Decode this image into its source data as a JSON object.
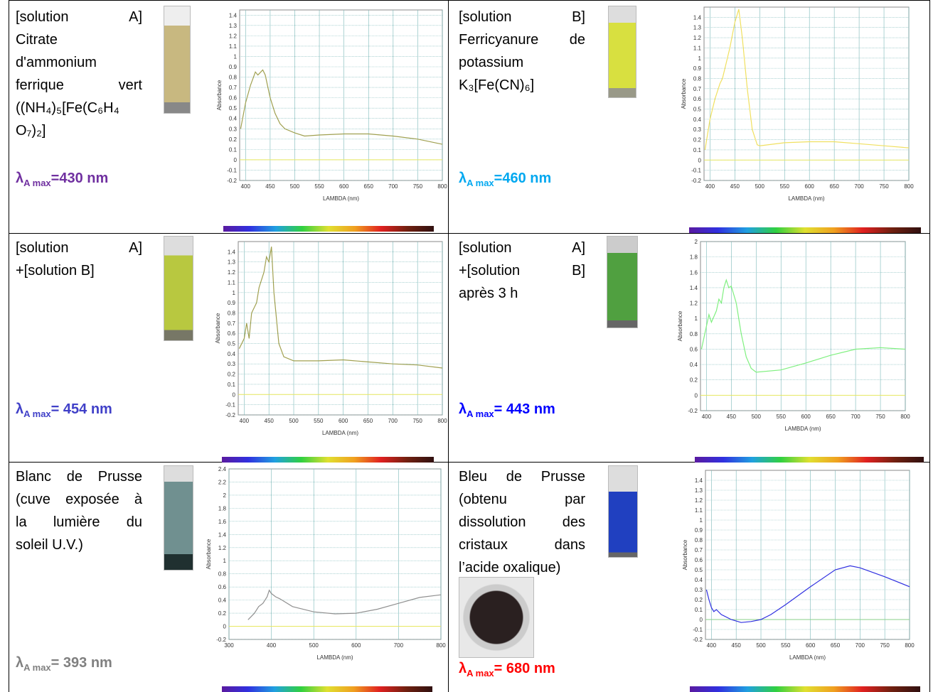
{
  "cells": [
    {
      "lines": [
        "[solution A]",
        "Citrate",
        "d'ammonium",
        "ferrique vert",
        "((NH₄)₅[Fe(C₆H₄",
        "O₇)₂]"
      ],
      "lambda": {
        "symbol": "λ",
        "sub": "A max",
        "text": "=430 nm",
        "color": "#7030a0"
      }
    },
    {
      "lines": [
        "[solution B]",
        "Ferricyanure de",
        "potassium",
        "K₃[Fe(CN)₆]"
      ],
      "lambda": {
        "symbol": "λ",
        "sub": "A max",
        "text": "=460  nm",
        "color": "#00a8f0"
      }
    },
    {
      "lines": [
        "[solution A]",
        "+[solution B]"
      ],
      "lambda": {
        "symbol": "λ",
        "sub": "A max",
        "text": "= 454  nm",
        "color": "#4040c8"
      }
    },
    {
      "lines": [
        "[solution A]",
        "+[solution B]",
        "après 3 h"
      ],
      "lambda": {
        "symbol": "λ",
        "sub": "A max",
        "text": "= 443  nm",
        "color": "#0000ff"
      }
    },
    {
      "lines": [
        "Blanc de Prusse",
        "(cuve exposée à",
        "la lumière du",
        "soleil U.V.)"
      ],
      "lambda": {
        "symbol": "λ",
        "sub": "A max",
        "text": "= 393  nm",
        "color": "#808080"
      }
    },
    {
      "lines": [
        "Bleu de Prusse",
        "(obtenu par",
        "dissolution des",
        "cristaux dans",
        "l’acide oxalique)"
      ],
      "lambda": {
        "symbol": "λ",
        "sub": "A max",
        "text": "= 680  nm",
        "color": "#ff0000"
      }
    }
  ],
  "chart_data": [
    {
      "type": "line",
      "ylabel": "Absorbance",
      "xlabel": "LAMBDA (nm)",
      "xlim": [
        388,
        800
      ],
      "ylim": [
        -0.2,
        1.45
      ],
      "xticks": [
        400,
        450,
        500,
        550,
        600,
        650,
        700,
        750,
        800
      ],
      "yticks": [
        -0.2,
        -0.1,
        0,
        0.1,
        0.2,
        0.3,
        0.4,
        0.5,
        0.6,
        0.7,
        0.8,
        0.9,
        1,
        1.1,
        1.2,
        1.3,
        1.4
      ],
      "grid": true,
      "reference_line": {
        "value": 0,
        "color": "#e8e860"
      },
      "x": [
        390,
        400,
        410,
        420,
        425,
        435,
        440,
        450,
        460,
        470,
        480,
        500,
        520,
        550,
        600,
        650,
        700,
        750,
        800
      ],
      "series": [
        {
          "color": "#a0a050",
          "values": [
            0.3,
            0.55,
            0.72,
            0.85,
            0.82,
            0.87,
            0.82,
            0.6,
            0.45,
            0.35,
            0.3,
            0.26,
            0.23,
            0.24,
            0.25,
            0.25,
            0.23,
            0.2,
            0.15
          ]
        }
      ]
    },
    {
      "type": "line",
      "ylabel": "Absorbance",
      "xlabel": "LAMBDA (nm)",
      "xlim": [
        388,
        800
      ],
      "ylim": [
        -0.2,
        1.5
      ],
      "xticks": [
        400,
        450,
        500,
        550,
        600,
        650,
        700,
        750,
        800
      ],
      "yticks": [
        -0.2,
        -0.1,
        0,
        0.1,
        0.2,
        0.3,
        0.4,
        0.5,
        0.6,
        0.7,
        0.8,
        0.9,
        1,
        1.1,
        1.2,
        1.3,
        1.4
      ],
      "grid": true,
      "reference_line": {
        "value": 0,
        "color": "#e8e860"
      },
      "x": [
        390,
        400,
        410,
        420,
        425,
        430,
        440,
        450,
        458,
        465,
        475,
        485,
        495,
        500,
        550,
        600,
        650,
        700,
        750,
        800
      ],
      "series": [
        {
          "color": "#f0e060",
          "values": [
            0.1,
            0.4,
            0.6,
            0.75,
            0.8,
            0.9,
            1.1,
            1.35,
            1.48,
            1.2,
            0.7,
            0.3,
            0.15,
            0.14,
            0.17,
            0.18,
            0.18,
            0.16,
            0.14,
            0.12
          ]
        }
      ]
    },
    {
      "type": "line",
      "ylabel": "Absorbance",
      "xlabel": "LAMBDA (nm)",
      "xlim": [
        388,
        800
      ],
      "ylim": [
        -0.2,
        1.5
      ],
      "xticks": [
        400,
        450,
        500,
        550,
        600,
        650,
        700,
        750,
        800
      ],
      "yticks": [
        -0.2,
        -0.1,
        0,
        0.1,
        0.2,
        0.3,
        0.4,
        0.5,
        0.6,
        0.7,
        0.8,
        0.9,
        1,
        1.1,
        1.2,
        1.3,
        1.4
      ],
      "grid": true,
      "reference_line": {
        "value": 0,
        "color": "#e8e860"
      },
      "x": [
        390,
        400,
        405,
        410,
        415,
        425,
        430,
        440,
        445,
        450,
        455,
        460,
        470,
        480,
        500,
        550,
        600,
        650,
        700,
        750,
        800
      ],
      "series": [
        {
          "color": "#a0a050",
          "values": [
            0.45,
            0.55,
            0.7,
            0.55,
            0.8,
            0.9,
            1.05,
            1.2,
            1.35,
            1.3,
            1.45,
            1.0,
            0.5,
            0.37,
            0.33,
            0.33,
            0.34,
            0.32,
            0.3,
            0.29,
            0.26
          ]
        }
      ]
    },
    {
      "type": "line",
      "ylabel": "Absorbance",
      "xlabel": "LAMBDA (nm)",
      "xlim": [
        388,
        800
      ],
      "ylim": [
        -0.2,
        2
      ],
      "xticks": [
        400,
        450,
        500,
        550,
        600,
        650,
        700,
        750,
        800
      ],
      "yticks": [
        -0.2,
        0,
        0.2,
        0.4,
        0.6,
        0.8,
        1,
        1.2,
        1.4,
        1.6,
        1.8,
        2
      ],
      "grid": true,
      "reference_line": {
        "value": 0,
        "color": "#e8e860"
      },
      "x": [
        390,
        400,
        405,
        410,
        420,
        425,
        430,
        435,
        440,
        445,
        450,
        460,
        470,
        480,
        490,
        500,
        550,
        600,
        650,
        700,
        750,
        800
      ],
      "series": [
        {
          "color": "#80f080",
          "values": [
            0.6,
            0.9,
            1.05,
            0.95,
            1.1,
            1.25,
            1.2,
            1.4,
            1.5,
            1.4,
            1.42,
            1.2,
            0.8,
            0.5,
            0.35,
            0.3,
            0.33,
            0.42,
            0.52,
            0.6,
            0.62,
            0.6
          ]
        }
      ]
    },
    {
      "type": "line",
      "ylabel": "Absorbance",
      "xlabel": "LAMBDA (nm)",
      "xlim": [
        300,
        800
      ],
      "ylim": [
        -0.2,
        2.4
      ],
      "xticks": [
        300,
        400,
        500,
        600,
        700,
        800
      ],
      "yticks": [
        -0.2,
        0,
        0.2,
        0.4,
        0.6,
        0.8,
        1,
        1.2,
        1.4,
        1.6,
        1.8,
        2,
        2.2,
        2.4
      ],
      "grid": true,
      "reference_line": {
        "value": 0,
        "color": "#e8e860"
      },
      "x": [
        345,
        360,
        370,
        380,
        390,
        395,
        400,
        410,
        420,
        450,
        500,
        550,
        600,
        650,
        700,
        750,
        800
      ],
      "series": [
        {
          "color": "#909090",
          "values": [
            0.1,
            0.2,
            0.3,
            0.35,
            0.45,
            0.55,
            0.5,
            0.45,
            0.42,
            0.3,
            0.22,
            0.19,
            0.2,
            0.26,
            0.35,
            0.44,
            0.48
          ]
        }
      ]
    },
    {
      "type": "line",
      "ylabel": "Absorbance",
      "xlabel": "LAMBDA (nm)",
      "xlim": [
        388,
        800
      ],
      "ylim": [
        -0.2,
        1.5
      ],
      "xticks": [
        400,
        450,
        500,
        550,
        600,
        650,
        700,
        750,
        800
      ],
      "yticks": [
        -0.2,
        -0.1,
        0,
        0.1,
        0.2,
        0.3,
        0.4,
        0.5,
        0.6,
        0.7,
        0.8,
        0.9,
        1,
        1.1,
        1.2,
        1.3,
        1.4
      ],
      "grid": true,
      "reference_line": {
        "value": 0,
        "color": "#8ad08a"
      },
      "x": [
        390,
        395,
        400,
        405,
        410,
        420,
        440,
        460,
        480,
        500,
        520,
        550,
        600,
        650,
        680,
        700,
        750,
        800
      ],
      "series": [
        {
          "color": "#3030e0",
          "values": [
            0.3,
            0.2,
            0.12,
            0.08,
            0.1,
            0.05,
            0.0,
            -0.03,
            -0.02,
            0.0,
            0.05,
            0.15,
            0.33,
            0.5,
            0.54,
            0.52,
            0.43,
            0.33
          ]
        }
      ]
    }
  ]
}
